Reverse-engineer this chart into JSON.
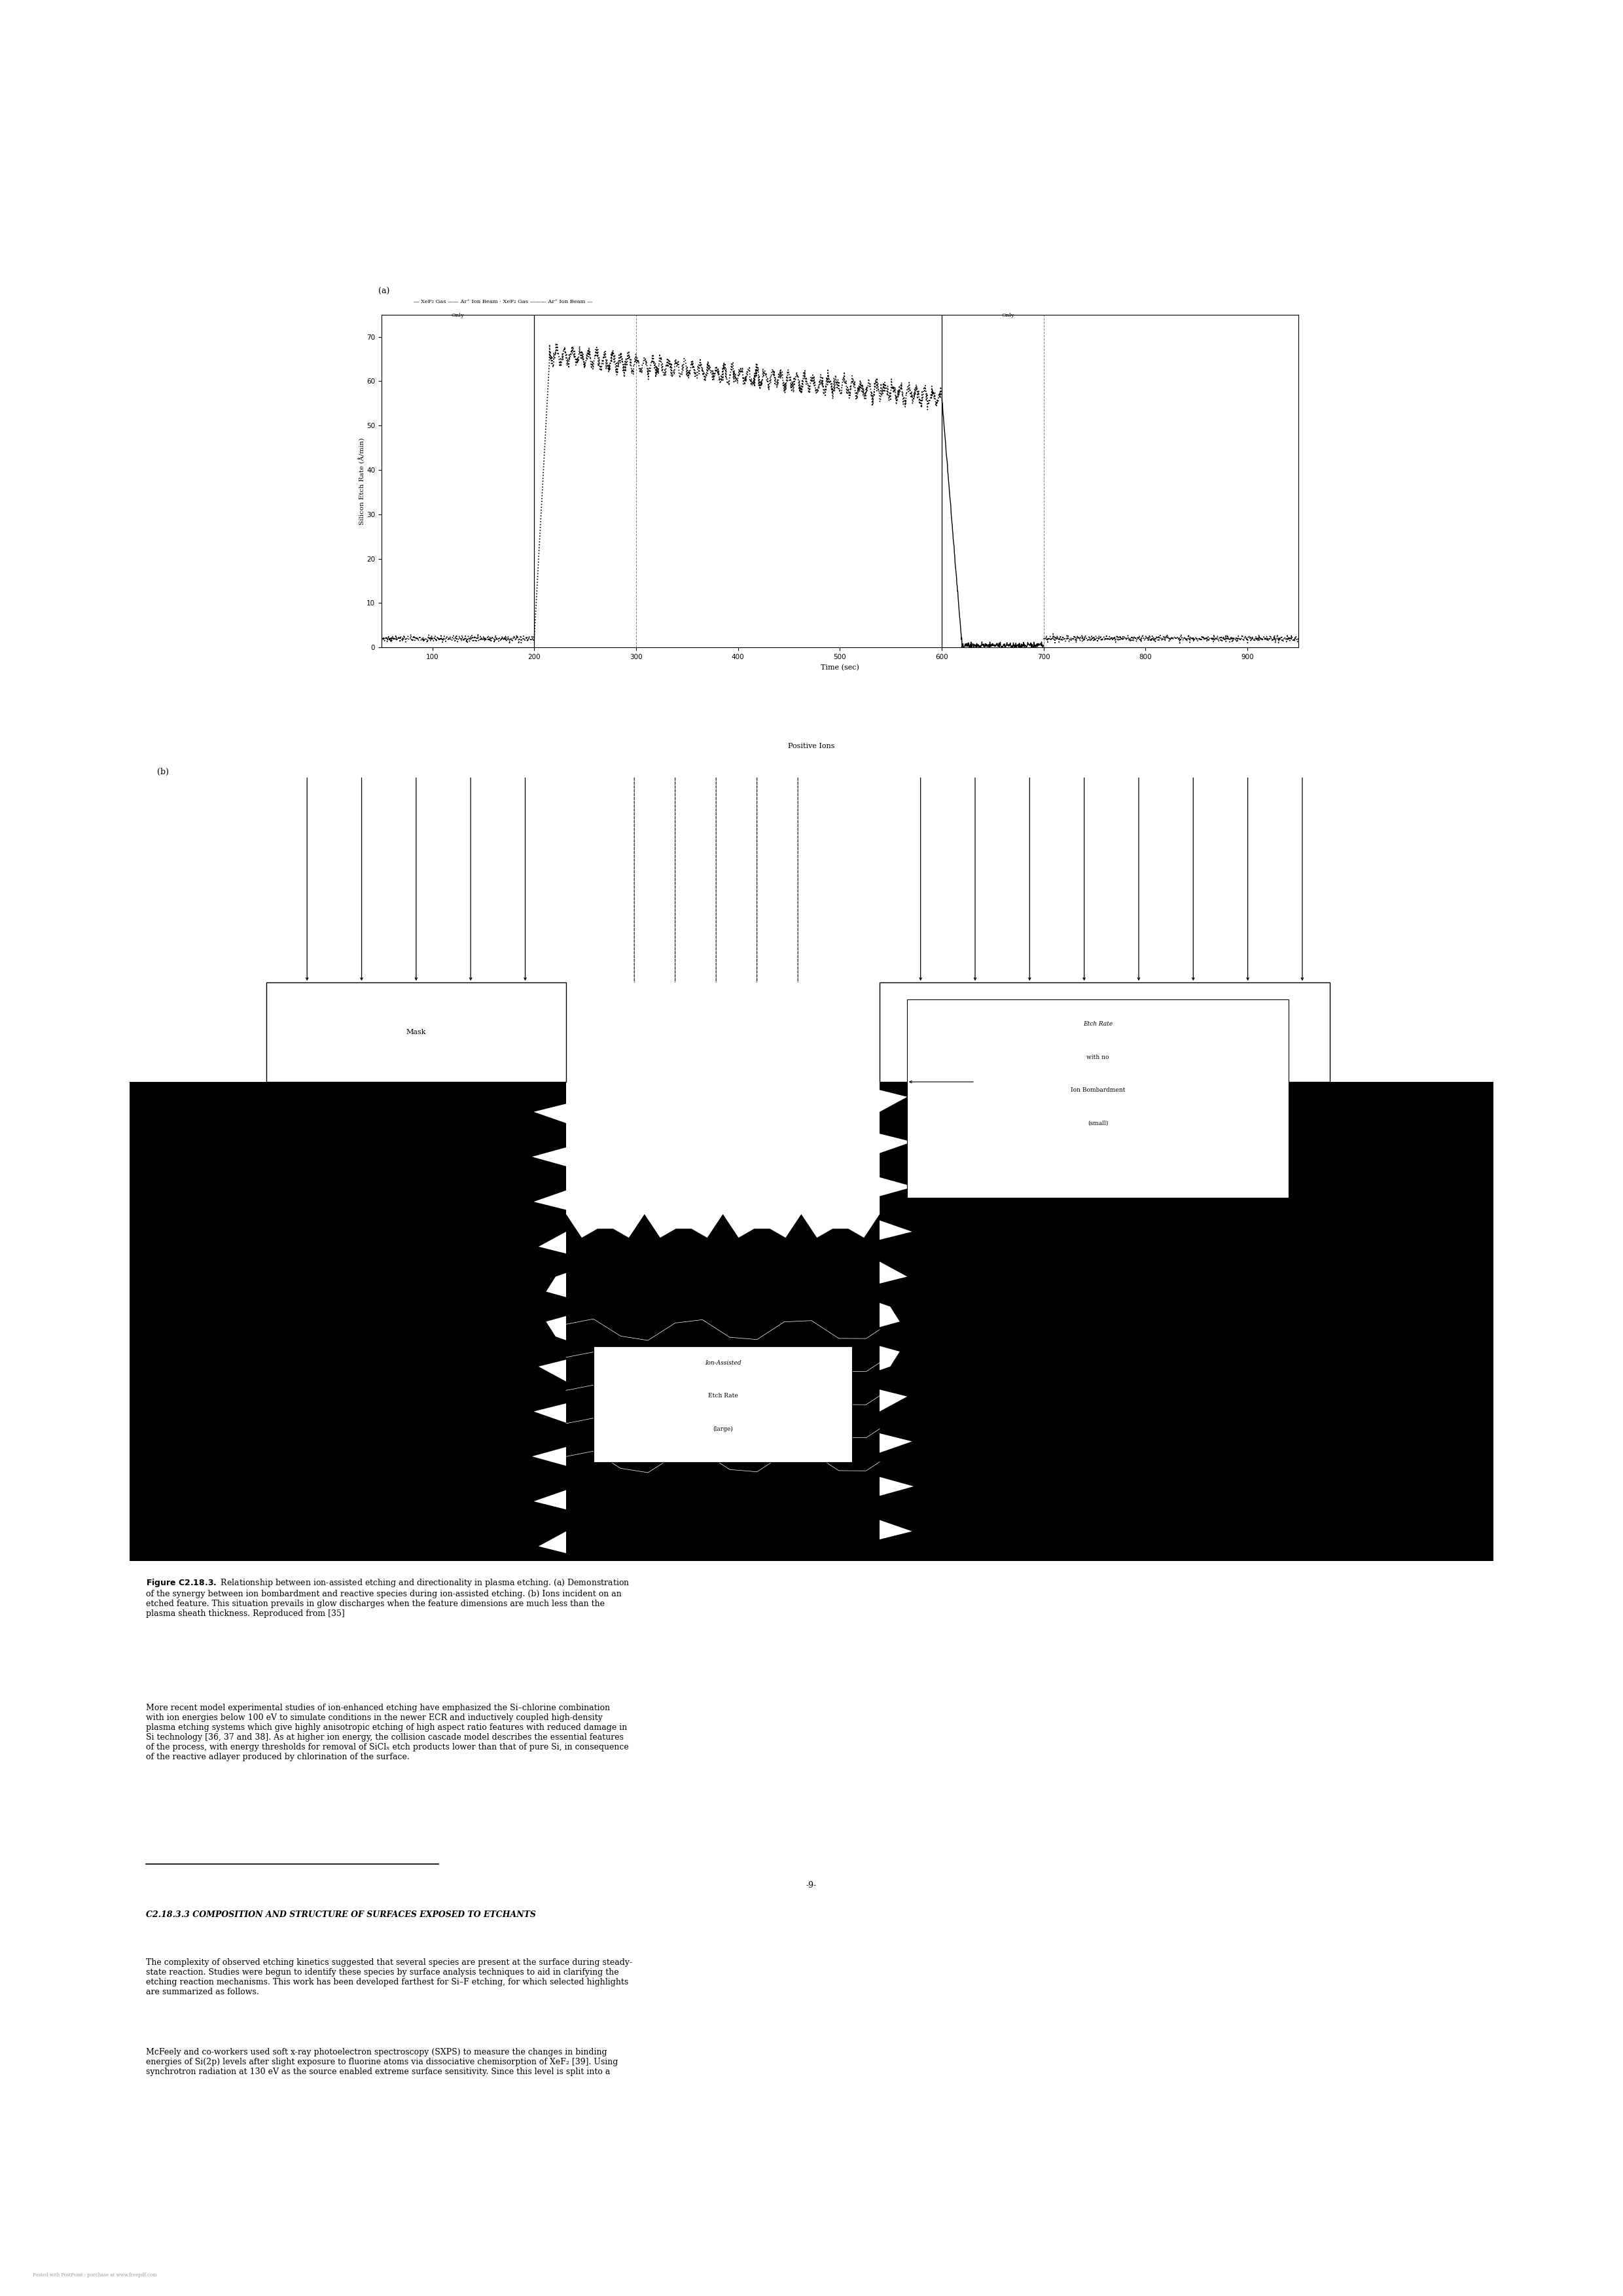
{
  "page_width": 24.8,
  "page_height": 35.08,
  "bg_color": "#ffffff",
  "plot_a": {
    "xlabel": "Time (sec)",
    "ylabel": "Silicon Etch Rate (Å/min)",
    "xlim": [
      50,
      950
    ],
    "ylim": [
      0,
      75
    ],
    "yticks": [
      0,
      10,
      20,
      30,
      40,
      50,
      60,
      70
    ],
    "xticks": [
      100,
      200,
      300,
      400,
      500,
      600,
      700,
      800,
      900
    ]
  },
  "page_number": "-9-",
  "section_title": "C2.18.3.3 COMPOSITION AND STRUCTURE OF SURFACES EXPOSED TO ETCHANTS",
  "footer_text": "Posted with PostPoint - purchase at www.freepdf.com"
}
